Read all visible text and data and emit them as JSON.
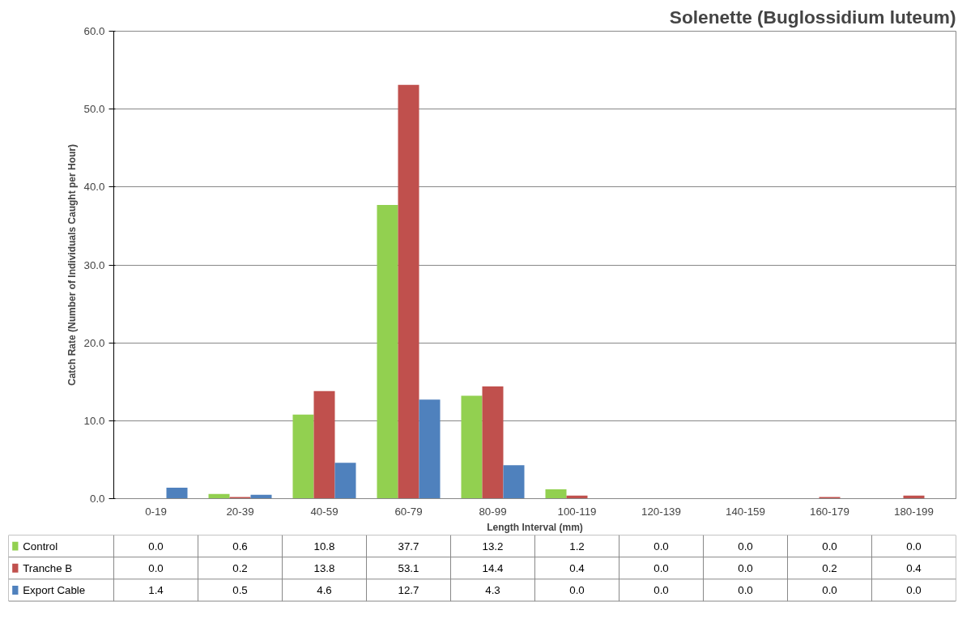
{
  "chart_data": {
    "type": "bar",
    "title": "Solenette (Buglossidium luteum)",
    "xlabel": "Length Interval (mm)",
    "ylabel": "Catch Rate (Number of Individuals Caught per Hour)",
    "categories": [
      "0-19",
      "20-39",
      "40-59",
      "60-79",
      "80-99",
      "100-119",
      "120-139",
      "140-159",
      "160-179",
      "180-199"
    ],
    "series": [
      {
        "name": "Control",
        "color": "#92d050",
        "values": [
          0.0,
          0.6,
          10.8,
          37.7,
          13.2,
          1.2,
          0.0,
          0.0,
          0.0,
          0.0
        ],
        "value_labels": [
          "0.0",
          "0.6",
          "10.8",
          "37.7",
          "13.2",
          "1.2",
          "0.0",
          "0.0",
          "0.0",
          "0.0"
        ]
      },
      {
        "name": "Tranche B",
        "color": "#c0504d",
        "values": [
          0.0,
          0.2,
          13.8,
          53.1,
          14.4,
          0.4,
          0.0,
          0.0,
          0.2,
          0.4
        ],
        "value_labels": [
          "0.0",
          "0.2",
          "13.8",
          "53.1",
          "14.4",
          "0.4",
          "0.0",
          "0.0",
          "0.2",
          "0.4"
        ]
      },
      {
        "name": "Export Cable",
        "color": "#4f81bd",
        "values": [
          1.4,
          0.5,
          4.6,
          12.7,
          4.3,
          0.0,
          0.0,
          0.0,
          0.0,
          0.0
        ],
        "value_labels": [
          "1.4",
          "0.5",
          "4.6",
          "12.7",
          "4.3",
          "0.0",
          "0.0",
          "0.0",
          "0.0",
          "0.0"
        ]
      }
    ],
    "ylim": [
      0,
      60
    ],
    "yticks": [
      {
        "value": 0,
        "label": "0.0"
      },
      {
        "value": 10,
        "label": "10.0"
      },
      {
        "value": 20,
        "label": "20.0"
      },
      {
        "value": 30,
        "label": "30.0"
      },
      {
        "value": 40,
        "label": "40.0"
      },
      {
        "value": 50,
        "label": "50.0"
      },
      {
        "value": 60,
        "label": "60.0"
      }
    ],
    "grid": "y",
    "legend": "bottom"
  }
}
